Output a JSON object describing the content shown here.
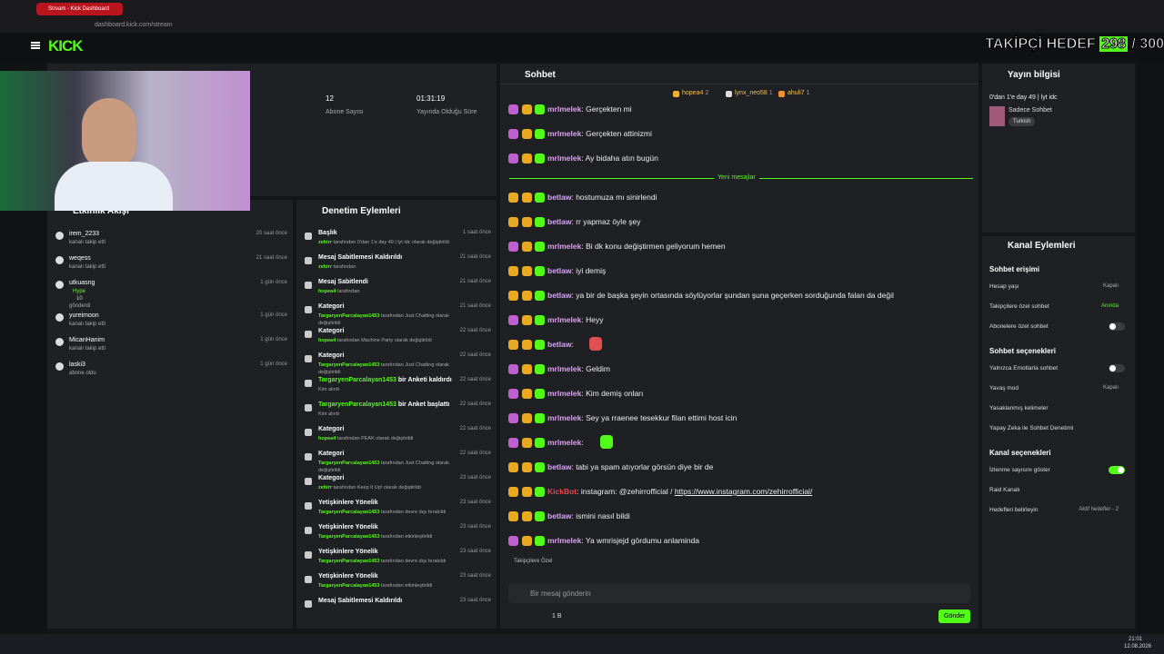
{
  "browser": {
    "tab": "Stream - Kick Dashboard",
    "url": "dashboard.kick.com/stream"
  },
  "header": {
    "logo": "KICK",
    "goal_label": "TAKİPÇİ HEDEF",
    "goal_current": "298",
    "goal_total": "/ 300"
  },
  "stats": [
    {
      "value": "12",
      "label": "Abone Sayısı"
    },
    {
      "value": "01:31:19",
      "label": "Yayında Olduğu Süre"
    }
  ],
  "activity": {
    "title": "Etkinlik Akışı",
    "items": [
      {
        "user": "irem_2233",
        "action": "kanalı takip etti",
        "time": "20 saat önce"
      },
      {
        "user": "weqess",
        "action": "kanalı takip etti",
        "time": "21 saat önce"
      },
      {
        "user": "utkuasng",
        "sub": "Hype",
        "amount": "10",
        "action": "gönderdi",
        "time": "1 gün önce"
      },
      {
        "user": "yureimoon",
        "action": "kanalı takip etti",
        "time": "1 gün önce"
      },
      {
        "user": "MicanHanim",
        "action": "kanalı takip etti",
        "time": "1 gün önce"
      },
      {
        "user": "laski3",
        "action": "abone oldu",
        "time": "1 gün önce"
      }
    ]
  },
  "moderation": {
    "title": "Denetim Eylemleri",
    "items": [
      {
        "title": "Başlık",
        "actor": "zehirr",
        "detail": "tarafından 0'dan 1'e day 49 | lyt idc olarak değiştirildi",
        "time": "1 saat önce"
      },
      {
        "title": "Mesaj Sabitlemesi Kaldırıldı",
        "actor": "zehirr",
        "detail": "tarafından",
        "time": "21 saat önce"
      },
      {
        "title": "Mesaj Sabitlendi",
        "actor": "hopea4",
        "detail": "tarafından",
        "time": "21 saat önce"
      },
      {
        "title": "Kategori",
        "actor": "TargaryenParcalayan1453",
        "detail": "tarafından Just Chatting olarak değiştirildi",
        "time": "21 saat önce"
      },
      {
        "title": "Kategori",
        "actor": "hopea4",
        "detail": "tarafından Machine Party olarak değiştirildi",
        "time": "22 saat önce"
      },
      {
        "title": "Kategori",
        "actor": "TargaryenParcalayan1453",
        "detail": "tarafından Just Chatting olarak değiştirildi",
        "time": "22 saat önce"
      },
      {
        "title_actor": "TargaryenParcalayan1453",
        "title": "bir Anketi kaldırdı",
        "detail": "Kim alırdı",
        "time": "22 saat önce"
      },
      {
        "title_actor": "TargaryenParcalayan1453",
        "title": "bir Anket başlattı",
        "detail": "Kim alırdı",
        "time": "22 saat önce"
      },
      {
        "title": "Kategori",
        "actor": "hopea4",
        "detail": "tarafından PEAK olarak değiştirildi",
        "time": "22 saat önce"
      },
      {
        "title": "Kategori",
        "actor": "TargaryenParcalayan1453",
        "detail": "tarafından Just Chatting olarak değiştirildi",
        "time": "22 saat önce"
      },
      {
        "title": "Kategori",
        "actor": "zehirr",
        "detail": "tarafından Keep It Up! olarak değiştirildi",
        "time": "23 saat önce"
      },
      {
        "title": "Yetişkinlere Yönelik",
        "actor": "TargaryenParcalayan1453",
        "detail": "tarafından devre dışı bırakıldı",
        "time": "23 saat önce"
      },
      {
        "title": "Yetişkinlere Yönelik",
        "actor": "TargaryenParcalayan1453",
        "detail": "tarafından etkinleştirildi",
        "time": "23 saat önce"
      },
      {
        "title": "Yetişkinlere Yönelik",
        "actor": "TargaryenParcalayan1453",
        "detail": "tarafından devre dışı bırakıldı",
        "time": "23 saat önce"
      },
      {
        "title": "Yetişkinlere Yönelik",
        "actor": "TargaryenParcalayan1453",
        "detail": "tarafından etkinleştirildi",
        "time": "23 saat önce"
      },
      {
        "title": "Mesaj Sabitlemesi Kaldırıldı",
        "time": "23 saat önce"
      }
    ]
  },
  "chat": {
    "title": "Sohbet",
    "top": [
      {
        "user": "hopea4",
        "count": "2"
      },
      {
        "user": "lynx_neo58",
        "count": "1"
      },
      {
        "user": "ahuli7",
        "count": "1"
      }
    ],
    "divider": "Yeni mesajlar",
    "divider_after": 3,
    "messages": [
      {
        "user": "mrlmelek",
        "color": "#d9a3ec",
        "text": "Gerçekten mi"
      },
      {
        "user": "mrlmelek",
        "color": "#d9a3ec",
        "text": "Gerçekten attinizmi"
      },
      {
        "user": "mrlmelek",
        "color": "#d9a3ec",
        "text": "Ay bidaha atın bugün"
      },
      {
        "user": "betlaw",
        "color": "#d7a6f5",
        "text": "hostumuza mı sinirlendi"
      },
      {
        "user": "betlaw",
        "color": "#d7a6f5",
        "text": "rr yapmaz öyle şey"
      },
      {
        "user": "mrlmelek",
        "color": "#d9a3ec",
        "text": "Bi dk konu değiştirmen geliyorum hemen"
      },
      {
        "user": "betlaw",
        "color": "#d7a6f5",
        "text": "iyi demiş"
      },
      {
        "user": "betlaw",
        "color": "#d7a6f5",
        "text": "ya bir de başka şeyin ortasında söylüyorlar şundan şuna geçerken sorduğunda falan da değil"
      },
      {
        "user": "mrlmelek",
        "color": "#d9a3ec",
        "text": "Heyy"
      },
      {
        "user": "betlaw",
        "color": "#d7a6f5",
        "emote": "#e05050"
      },
      {
        "user": "mrlmelek",
        "color": "#d9a3ec",
        "text": "Geldim"
      },
      {
        "user": "mrlmelek",
        "color": "#d9a3ec",
        "text": "Kim demiş onları"
      },
      {
        "user": "mrlmelek",
        "color": "#d9a3ec",
        "text": "Sey ya rraenee tesekkur filan ettimi host icin"
      },
      {
        "user": "mrlmelek",
        "color": "#d9a3ec",
        "emote": "#53fc18"
      },
      {
        "user": "betlaw",
        "color": "#d7a6f5",
        "text": "tabi ya spam atıyorlar görsün diye bir de"
      },
      {
        "user": "KickBot",
        "color": "#e5484d",
        "text": "instagram: @zehirrofficial /",
        "link": "https://www.instagram.com/zehirrofficial/"
      },
      {
        "user": "betlaw",
        "color": "#d7a6f5",
        "text": "ismini nasıl bildi"
      },
      {
        "user": "mrlmelek",
        "color": "#d9a3ec",
        "text": "Ya wmrisjejd gördumu anlaminda"
      }
    ],
    "mode": "Takipçilere Özel",
    "placeholder": "Bir mesaj gönderin",
    "viewers": "1 B",
    "send": "Gönder"
  },
  "stream_info": {
    "title": "Yayın bilgisi",
    "stream_title": "0'dan 1'e day 49 | lyt idc",
    "mode": "Sadece Sohbet",
    "language": "Turkish"
  },
  "channel_actions": {
    "title": "Kanal Eylemleri",
    "sections": [
      {
        "heading": "Sohbet erişimi",
        "rows": [
          {
            "label": "Hesap yaşı",
            "value": "Kapalı"
          },
          {
            "label": "Takipçilere özel sohbet",
            "value": "Anında",
            "accent": true
          },
          {
            "label": "Abonelere özel sohbet",
            "toggle": false
          }
        ]
      },
      {
        "heading": "Sohbet seçenekleri",
        "rows": [
          {
            "label": "Yalnızca Emotlarla sohbet",
            "toggle": false
          },
          {
            "label": "Yavaş mod",
            "value": "Kapalı"
          },
          {
            "label": "Yasaklanmış kelimeler",
            "value": ""
          },
          {
            "label": "Yapay Zeka ile Sohbet Denetimi"
          }
        ]
      },
      {
        "heading": "Kanal seçenekleri",
        "rows": [
          {
            "label": "İzlenme sayısını göster",
            "toggle": true
          },
          {
            "label": "Raid Kanalı"
          },
          {
            "label": "Hedefleri belirleyin",
            "value": "Aktif hedefler - 2"
          }
        ]
      }
    ]
  },
  "taskbar": {
    "time": "21:01",
    "date": "12.08.2026"
  }
}
